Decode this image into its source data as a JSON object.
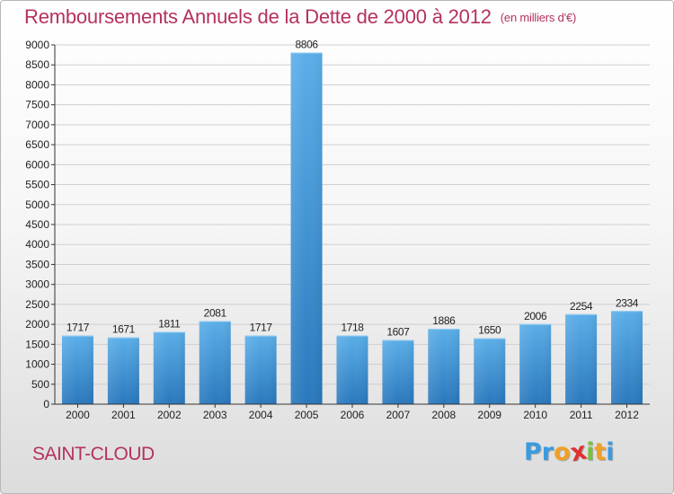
{
  "chart_data": {
    "type": "bar",
    "title": "Remboursements Annuels de la Dette de 2000 à 2012",
    "unit_label": "(en milliers d'€)",
    "categories": [
      "2000",
      "2001",
      "2002",
      "2003",
      "2004",
      "2005",
      "2006",
      "2007",
      "2008",
      "2009",
      "2010",
      "2011",
      "2012"
    ],
    "values": [
      1717,
      1671,
      1811,
      2081,
      1717,
      8806,
      1718,
      1607,
      1886,
      1650,
      2006,
      2254,
      2334
    ],
    "ylim": [
      0,
      9000
    ],
    "yticks": [
      0,
      500,
      1000,
      1500,
      2000,
      2500,
      3000,
      3500,
      4000,
      4500,
      5000,
      5500,
      6000,
      6500,
      7000,
      7500,
      8000,
      8500,
      9000
    ],
    "grid": true,
    "bar_color_top": "#5baee8",
    "bar_color_bottom": "#2a78bd"
  },
  "footer": {
    "city": "SAINT-CLOUD",
    "brand_letters": [
      "P",
      "r",
      "o",
      "x",
      "i",
      "t",
      "i"
    ],
    "brand_colors": [
      "#3a9be0",
      "#3a9be0",
      "#f0a028",
      "#e03030",
      "#7cc040",
      "#f0a028",
      "#3a9be0"
    ]
  },
  "colors": {
    "title": "#b5315f",
    "grid": "#cccccc",
    "axis": "#333333"
  }
}
